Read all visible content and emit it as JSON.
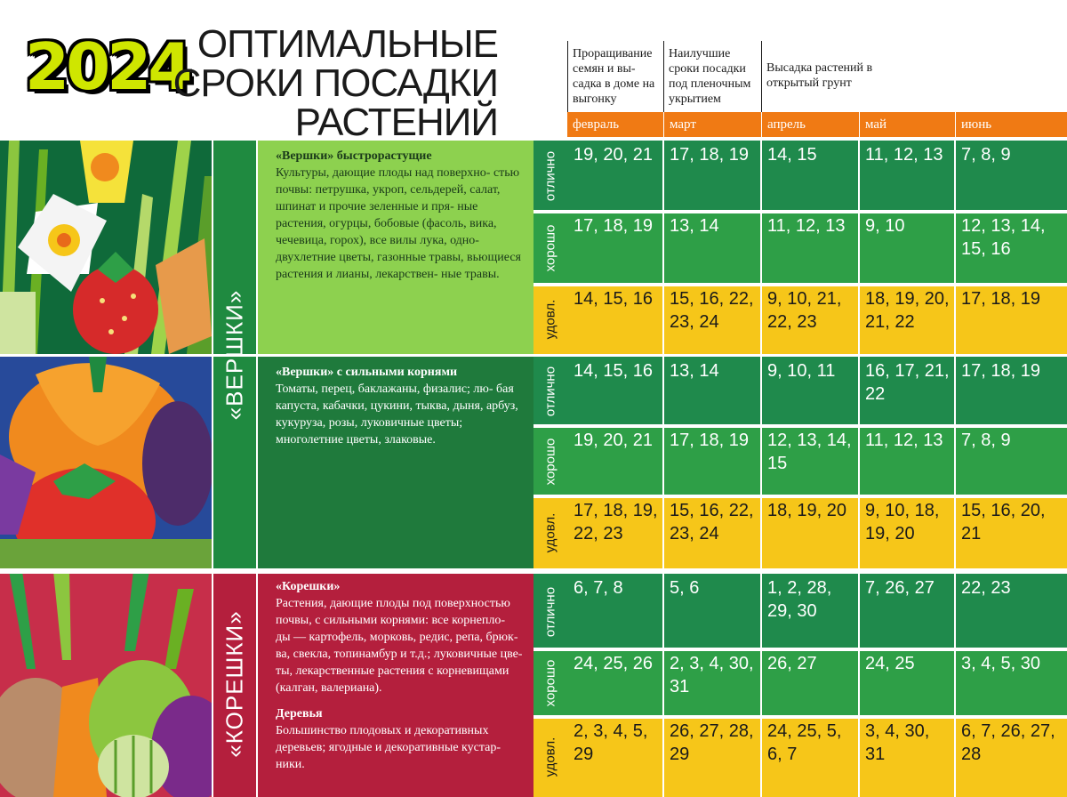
{
  "header": {
    "year": "2024",
    "title_lines": [
      "ОПТИМАЛЬНЫЕ",
      "СРОКИ ПОСАДКИ",
      "РАСТЕНИЙ"
    ],
    "columns": [
      "Проращивание семян и вы- садка в доме на выгонку",
      "Наилучшие сроки посадки под пленочным укрытием",
      "Высадка растений в открытый грунт"
    ],
    "months": [
      "февраль",
      "март",
      "апрель",
      "май",
      "июнь"
    ]
  },
  "quality": [
    "отлично",
    "хорошо",
    "удовл."
  ],
  "colors": {
    "excellent": "#1f8a4c",
    "good": "#2e9f47",
    "satisfactory": "#f6c619",
    "month_bar": "#f07a14",
    "band_vershki": "#1f8a40",
    "band_koreshki": "#b41f3d"
  },
  "sections": [
    {
      "band": "«ВЕРШКИ»",
      "groups": [
        {
          "title": "«Вершки» быстрорастущие",
          "text": "Культуры, дающие плоды над поверхно- стью почвы: петрушка, укроп, сельдерей, салат, шпинат и прочие зеленные и пря- ные растения, огурцы, бобовые (фасоль, вика, чечевица, горох), все вилы лука, одно-двухлетние цветы, газонные травы, вьющиеся растения и лианы, лекарствен- ные травы.",
          "rows": [
            [
              "19, 20, 21",
              "17, 18, 19",
              "14, 15",
              "11, 12, 13",
              "7, 8, 9"
            ],
            [
              "17, 18, 19",
              "13, 14",
              "11, 12, 13",
              "9, 10",
              "12, 13, 14, 15, 16"
            ],
            [
              "14, 15, 16",
              "15, 16, 22, 23, 24",
              "9, 10, 21, 22, 23",
              "18, 19, 20, 21, 22",
              "17, 18, 19"
            ]
          ]
        },
        {
          "title": "«Вершки» с сильными корнями",
          "text": "Томаты, перец, баклажаны, физалис; лю- бая капуста, кабачки, цукини, тыква, дыня, арбуз, кукуруза, розы, луковичные цветы; многолетние цветы, злаковые.",
          "rows": [
            [
              "14, 15, 16",
              "13, 14",
              "9, 10, 11",
              "16, 17, 21, 22",
              "17, 18, 19"
            ],
            [
              "19, 20, 21",
              "17, 18, 19",
              "12, 13, 14, 15",
              "11, 12, 13",
              "7, 8, 9"
            ],
            [
              "17, 18, 19, 22, 23",
              "15, 16, 22, 23, 24",
              "18, 19, 20",
              "9, 10, 18, 19, 20",
              "15, 16, 20, 21"
            ]
          ]
        }
      ]
    },
    {
      "band": "«КОРЕШКИ»",
      "groups": [
        {
          "title": "«Корешки»",
          "text": "Растения, дающие плоды под поверхностью почвы, с сильными корнями: все корнепло- ды — картофель, морковь, редис, репа, брюк- ва, свекла, топинамбур и т.д.; луковичные цве- ты, лекарственные растения с корневищами (калган, валериана).",
          "subtitle": "Деревья",
          "subtext": "Большинство плодовых и декоративных деревьев; ягодные и декоративные кустар- ники.",
          "rows": [
            [
              "6, 7, 8",
              "5, 6",
              "1, 2, 28, 29, 30",
              "7, 26, 27",
              "22, 23"
            ],
            [
              "24, 25, 26",
              "2, 3, 4, 30, 31",
              "26, 27",
              "24, 25",
              "3, 4, 5, 30"
            ],
            [
              "2, 3, 4, 5, 29",
              "26, 27, 28, 29",
              "24, 25, 5, 6, 7",
              "3, 4, 30, 31",
              "6, 7, 26, 27, 28"
            ]
          ]
        }
      ]
    }
  ]
}
